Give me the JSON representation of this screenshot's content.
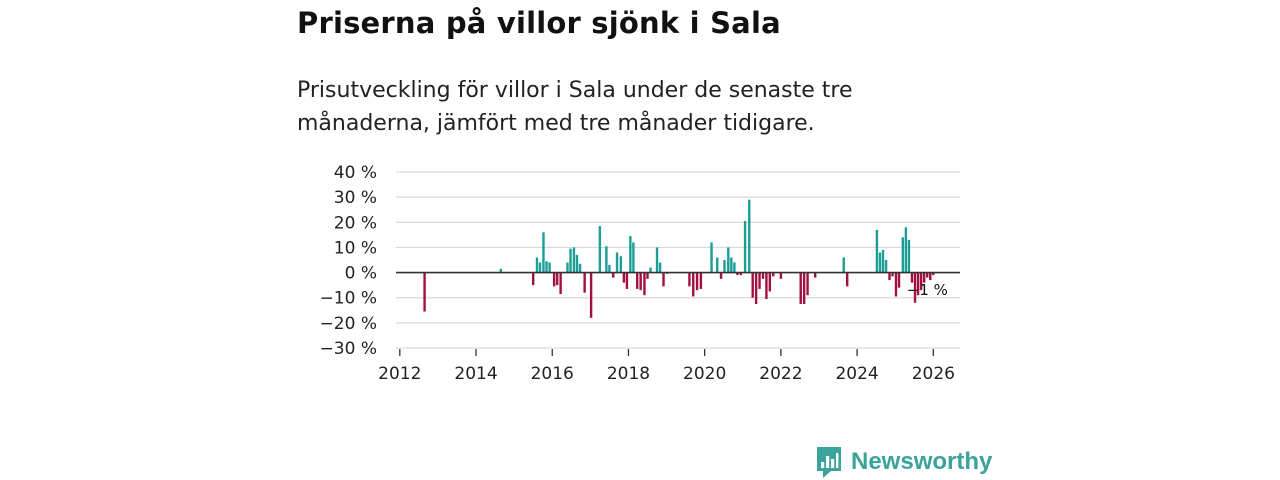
{
  "title": "Priserna på villor sjönk i Sala",
  "subtitle": "Prisutveckling för villor i Sala under de senaste tre månaderna, jämfört med tre månader tidigare.",
  "brand": {
    "name": "Newsworthy",
    "icon": "bar-chart-logo-icon"
  },
  "colors": {
    "positive": "#1a9e97",
    "negative": "#a3103f",
    "grid": "#d9d9d9",
    "zero": "#333333",
    "brand": "#3aa39b"
  },
  "chart_data": {
    "type": "bar",
    "title": "Priserna på villor sjönk i Sala",
    "ylabel": "",
    "xlabel": "",
    "xlim": [
      2011.9,
      2026.7
    ],
    "ylim": [
      -30,
      40
    ],
    "yticks": [
      40,
      30,
      20,
      10,
      0,
      -10,
      -20,
      -30
    ],
    "ytick_labels": [
      "40 %",
      "30 %",
      "20 %",
      "10 %",
      "0 %",
      "−10 %",
      "−20 %",
      "−30 %"
    ],
    "xticks": [
      2012,
      2014,
      2016,
      2018,
      2020,
      2022,
      2024,
      2026
    ],
    "xtick_labels": [
      "2012",
      "2014",
      "2016",
      "2018",
      "2020",
      "2022",
      "2024",
      "2026"
    ],
    "grid": true,
    "annotation": {
      "text": "−1 %",
      "x": 2026.0,
      "y": -1
    },
    "series": [
      {
        "name": "Prisutveckling",
        "x": [
          2012.65,
          2014.65,
          2015.5,
          2015.6,
          2015.68,
          2015.77,
          2015.85,
          2015.93,
          2016.05,
          2016.13,
          2016.22,
          2016.4,
          2016.48,
          2016.57,
          2016.65,
          2016.73,
          2016.85,
          2017.02,
          2017.25,
          2017.42,
          2017.5,
          2017.6,
          2017.7,
          2017.8,
          2017.88,
          2017.96,
          2018.05,
          2018.13,
          2018.23,
          2018.32,
          2018.42,
          2018.5,
          2018.58,
          2018.75,
          2018.83,
          2018.92,
          2019.02,
          2019.6,
          2019.7,
          2019.8,
          2019.9,
          2020.18,
          2020.33,
          2020.43,
          2020.52,
          2020.62,
          2020.7,
          2020.78,
          2020.86,
          2020.95,
          2021.06,
          2021.17,
          2021.26,
          2021.35,
          2021.44,
          2021.53,
          2021.62,
          2021.71,
          2021.8,
          2022.0,
          2022.52,
          2022.61,
          2022.7,
          2022.9,
          2023.65,
          2023.74,
          2024.52,
          2024.6,
          2024.68,
          2024.76,
          2024.85,
          2024.93,
          2025.02,
          2025.1,
          2025.2,
          2025.28,
          2025.36,
          2025.44,
          2025.52,
          2025.6,
          2025.68,
          2025.76,
          2025.84,
          2025.92,
          2026.0
        ],
        "values": [
          -15.5,
          1.5,
          -5,
          6,
          4,
          16,
          4.5,
          4,
          -5.5,
          -5,
          -8.5,
          4,
          9.5,
          10,
          7,
          3.5,
          -8,
          -18,
          18.5,
          10.5,
          3,
          -2,
          8,
          6.5,
          -4,
          -6.5,
          14.5,
          12,
          -6.5,
          -7,
          -9,
          -2.5,
          2,
          10,
          4,
          -5.5,
          -0.5,
          -5.5,
          -9.5,
          -7,
          -6.5,
          12,
          6,
          -2.5,
          5,
          10,
          6,
          4,
          -1,
          -1,
          20.5,
          29,
          -10,
          -12.5,
          -6.5,
          -2.5,
          -10.5,
          -7.5,
          -1.5,
          -2.5,
          -12.5,
          -12.5,
          -9,
          -2,
          6,
          -5.5,
          17,
          8,
          9,
          5,
          -3,
          -1.5,
          -9.5,
          -6,
          14,
          18,
          13,
          -4,
          -12,
          -9,
          -7,
          -4,
          -2,
          -3,
          -1
        ]
      }
    ]
  }
}
